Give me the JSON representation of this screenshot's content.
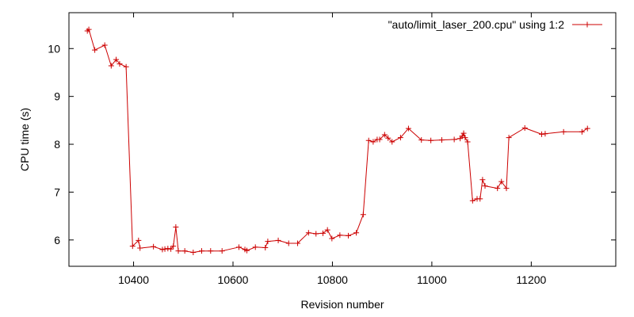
{
  "chart_data": {
    "type": "line",
    "title": "",
    "xlabel": "Revision number",
    "ylabel": "CPU time (s)",
    "xlim": [
      10270,
      11370
    ],
    "ylim": [
      5.45,
      10.75
    ],
    "xticks": [
      10400,
      10600,
      10800,
      11000,
      11200
    ],
    "yticks": [
      6,
      7,
      8,
      9,
      10
    ],
    "grid": false,
    "legend_position": "top-right",
    "series": [
      {
        "name": "\"auto/limit_laser_200.cpu\" using 1:2",
        "color": "#cc0000",
        "marker": "plus",
        "x": [
          10307,
          10310,
          10322,
          10342,
          10355,
          10365,
          10372,
          10385,
          10398,
          10410,
          10413,
          10440,
          10458,
          10463,
          10469,
          10475,
          10480,
          10485,
          10490,
          10503,
          10520,
          10537,
          10555,
          10578,
          10612,
          10624,
          10628,
          10645,
          10665,
          10670,
          10691,
          10712,
          10730,
          10752,
          10767,
          10781,
          10790,
          10799,
          10815,
          10832,
          10848,
          10862,
          10873,
          10882,
          10890,
          10895,
          10905,
          10912,
          10920,
          10937,
          10953,
          10979,
          10998,
          11020,
          11045,
          11057,
          11061,
          11064,
          11067,
          11072,
          11082,
          11091,
          11097,
          11102,
          11107,
          11132,
          11140,
          11150,
          11155,
          11187,
          11221,
          11228,
          11265,
          11302,
          11313
        ],
        "y": [
          10.37,
          10.4,
          9.97,
          10.07,
          9.64,
          9.77,
          9.68,
          9.62,
          5.87,
          5.99,
          5.83,
          5.86,
          5.8,
          5.81,
          5.82,
          5.81,
          5.87,
          6.27,
          5.77,
          5.77,
          5.74,
          5.77,
          5.77,
          5.77,
          5.85,
          5.8,
          5.78,
          5.85,
          5.84,
          5.97,
          5.99,
          5.93,
          5.93,
          6.15,
          6.13,
          6.14,
          6.21,
          6.03,
          6.1,
          6.09,
          6.15,
          6.53,
          8.08,
          8.05,
          8.1,
          8.1,
          8.2,
          8.13,
          8.05,
          8.14,
          8.33,
          8.09,
          8.08,
          8.09,
          8.1,
          8.12,
          8.17,
          8.23,
          8.14,
          8.05,
          6.82,
          6.86,
          6.86,
          7.26,
          7.13,
          7.08,
          7.22,
          7.08,
          8.14,
          8.34,
          8.21,
          8.22,
          8.26,
          8.26,
          8.33
        ]
      }
    ]
  }
}
